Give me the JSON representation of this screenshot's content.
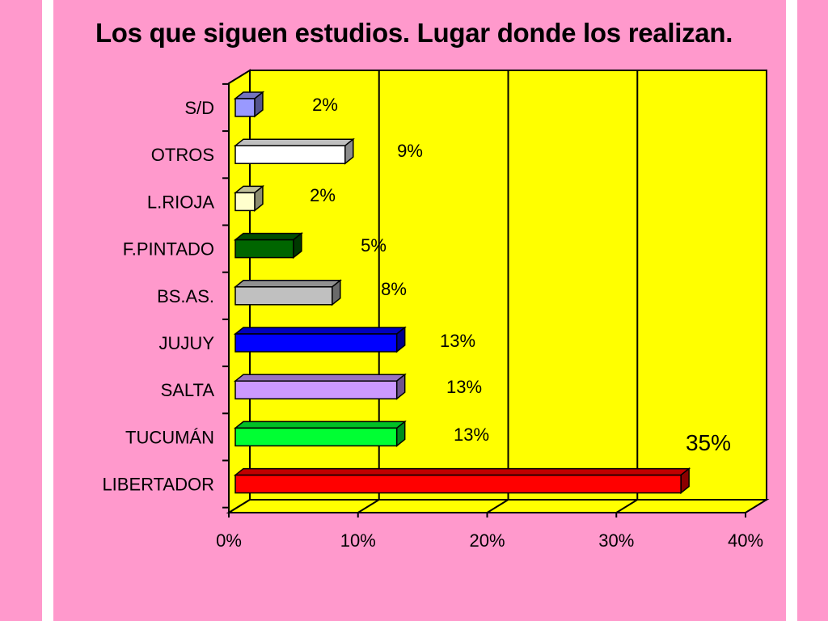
{
  "colors": {
    "background": "#ff99cc",
    "side_bands": "#ffffff",
    "plot_area": "#ffff00"
  },
  "chart_data": {
    "type": "bar",
    "orientation": "horizontal",
    "style": "3d",
    "title": "Los que siguen estudios. Lugar donde los realizan.",
    "categories": [
      "S/D",
      "OTROS",
      "L.RIOJA",
      "F.PINTADO",
      "BS.AS.",
      "JUJUY",
      "SALTA",
      "TUCUMÁN",
      "LIBERTADOR"
    ],
    "values": [
      2,
      9,
      2,
      5,
      8,
      13,
      13,
      13,
      35
    ],
    "value_labels": [
      "2%",
      "9%",
      "2%",
      "5%",
      "8%",
      "13%",
      "13%",
      "13%",
      "35%"
    ],
    "bar_colors": [
      "#9999ff",
      "#ffffff",
      "#ffffcc",
      "#006600",
      "#c0c0c0",
      "#0000ff",
      "#cc99ff",
      "#00ff33",
      "#ff0000"
    ],
    "xlim": [
      0,
      40
    ],
    "x_ticks": [
      "0%",
      "10%",
      "20%",
      "30%",
      "40%"
    ],
    "gridlines": "vertical"
  }
}
